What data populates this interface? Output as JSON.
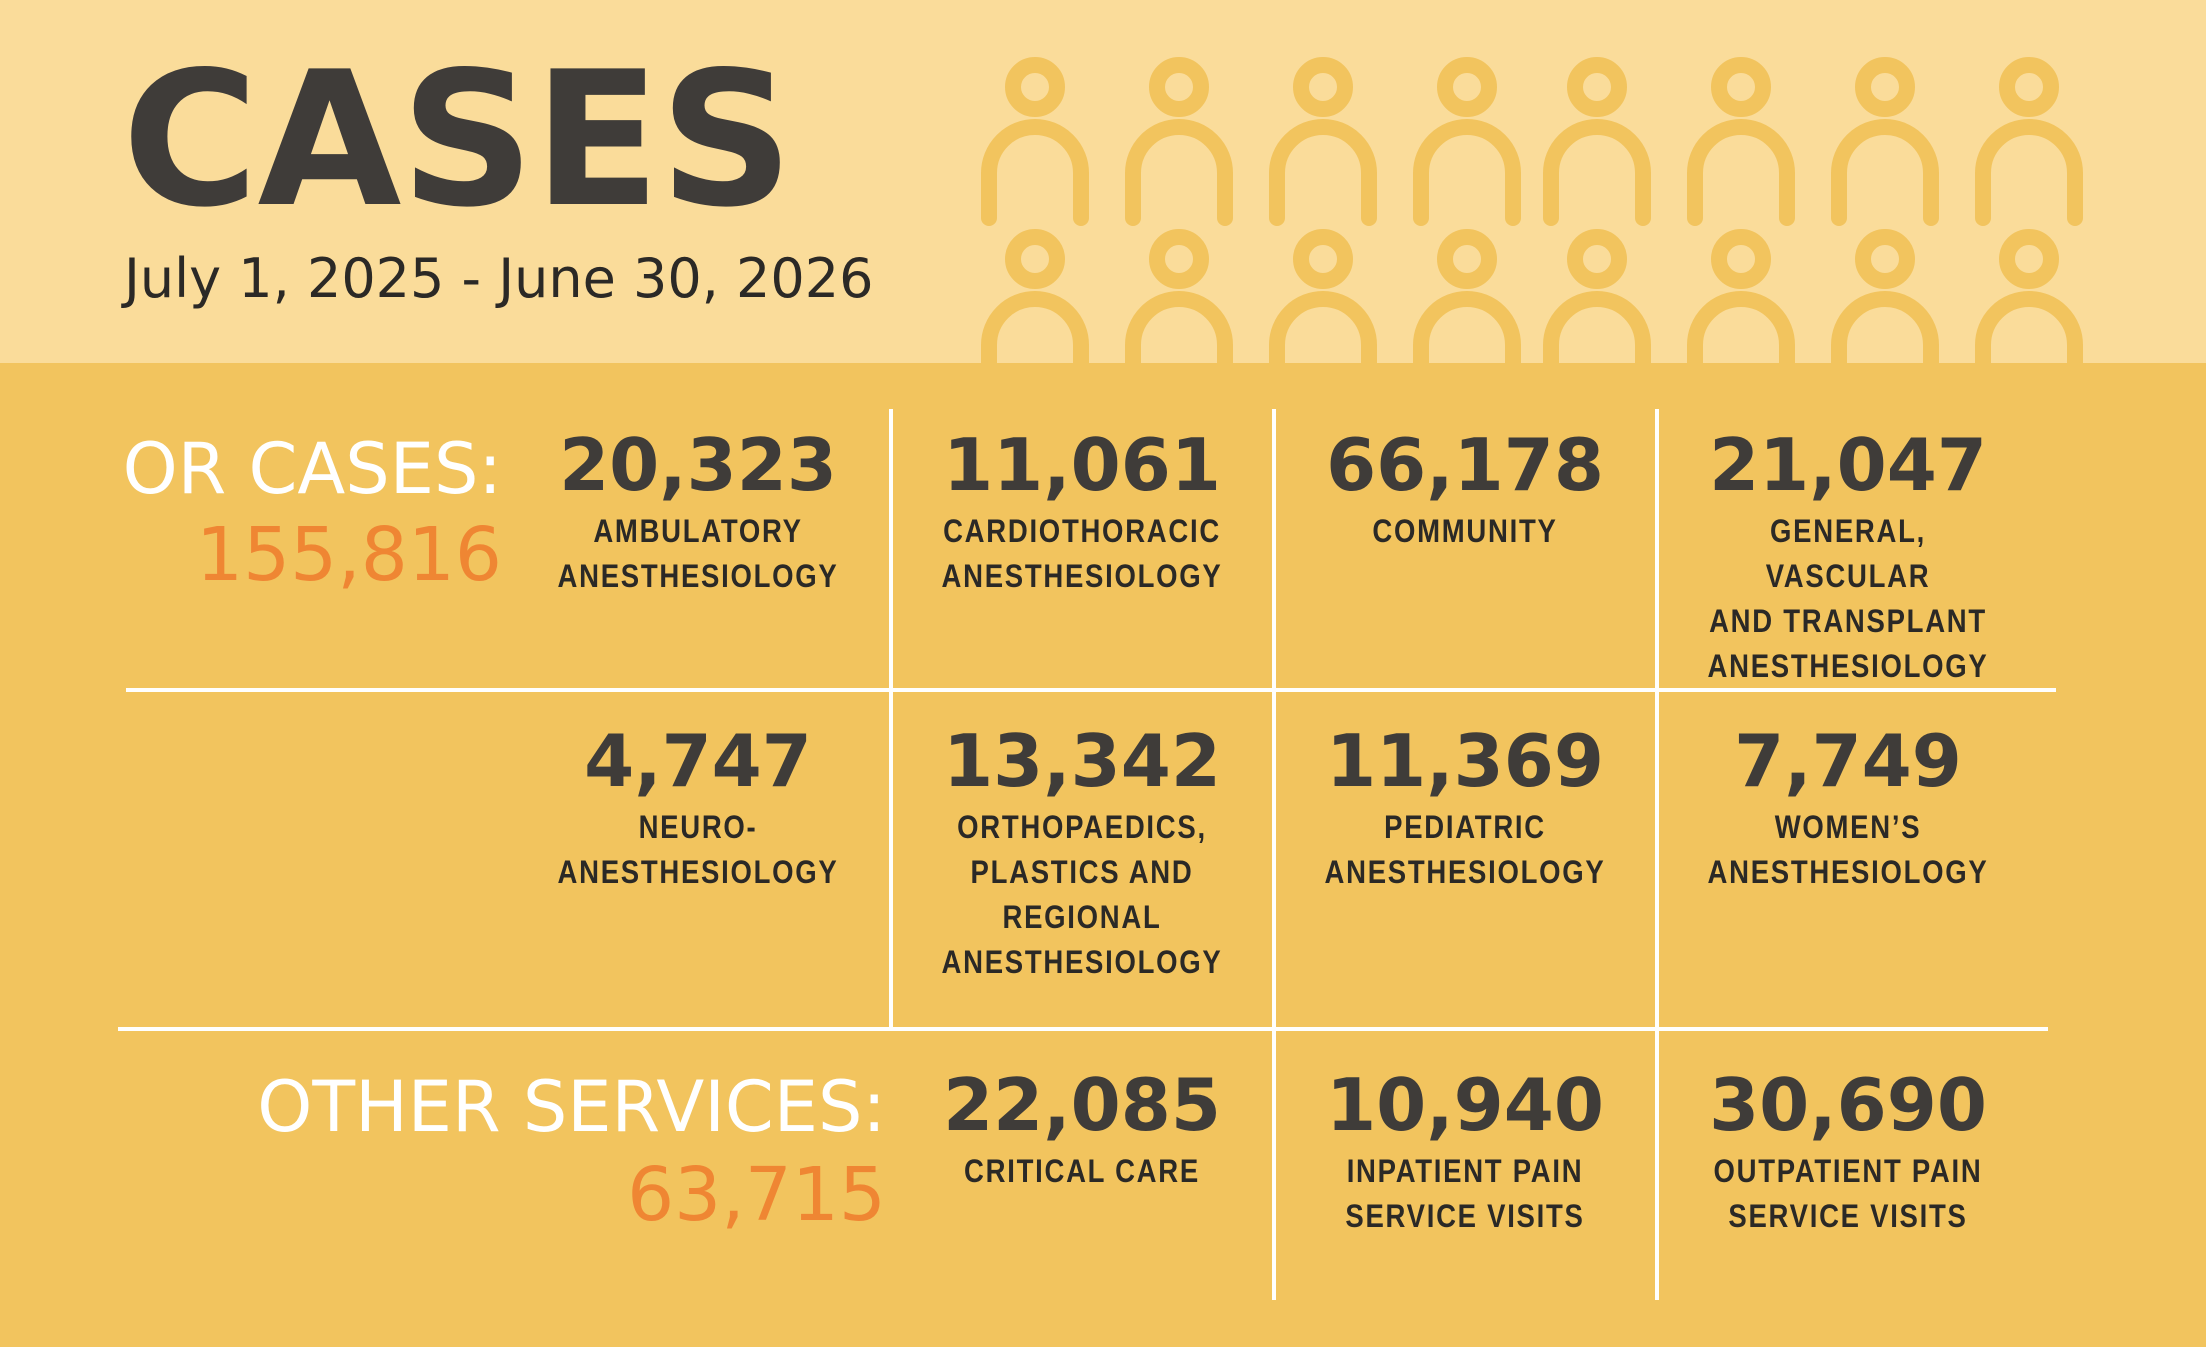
{
  "header": {
    "title": "CASES",
    "date_range": "July 1, 2025 - June 30, 2026",
    "pattern_icon": "person-icon"
  },
  "colors": {
    "header_bg": "#FADC9A",
    "main_bg": "#F2C45E",
    "pattern": "#F2C45E",
    "title_text": "#3F3C39",
    "section_label": "#FFFFFF",
    "section_total": "#EF8633",
    "divider": "#FFFFFF"
  },
  "or_cases": {
    "label": "OR CASES:",
    "total": "155,816",
    "items": [
      {
        "value": "20,323",
        "label": "AMBULATORY\nANESTHESIOLOGY"
      },
      {
        "value": "11,061",
        "label": "CARDIOTHORACIC\nANESTHESIOLOGY"
      },
      {
        "value": "66,178",
        "label": "COMMUNITY"
      },
      {
        "value": "21,047",
        "label": "GENERAL, VASCULAR\nAND TRANSPLANT\nANESTHESIOLOGY"
      },
      {
        "value": "4,747",
        "label": "NEURO-\nANESTHESIOLOGY"
      },
      {
        "value": "13,342",
        "label": "ORTHOPAEDICS,\nPLASTICS AND\nREGIONAL\nANESTHESIOLOGY"
      },
      {
        "value": "11,369",
        "label": "PEDIATRIC\nANESTHESIOLOGY"
      },
      {
        "value": "7,749",
        "label": "WOMEN’S\nANESTHESIOLOGY"
      }
    ]
  },
  "other_services": {
    "label": "OTHER SERVICES:",
    "total": "63,715",
    "items": [
      {
        "value": "22,085",
        "label": "CRITICAL CARE"
      },
      {
        "value": "10,940",
        "label": "INPATIENT PAIN\nSERVICE VISITS"
      },
      {
        "value": "30,690",
        "label": "OUTPATIENT PAIN\nSERVICE VISITS"
      }
    ]
  }
}
